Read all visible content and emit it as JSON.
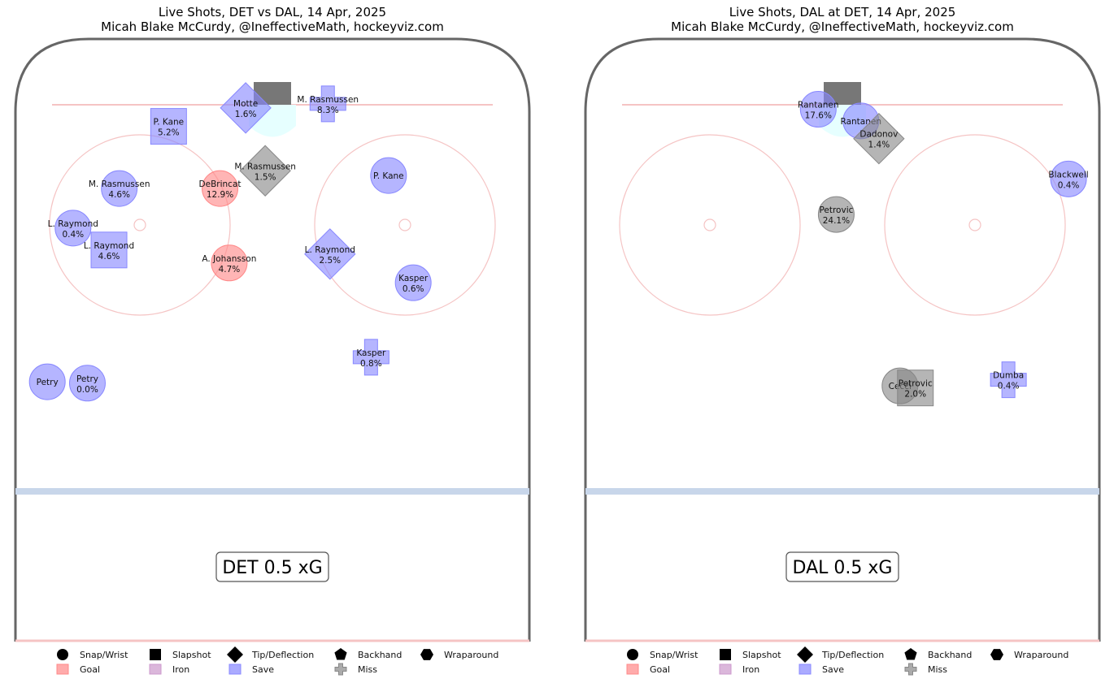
{
  "colors": {
    "save": "#8888ff",
    "goal": "#ff8888",
    "miss": "#888888",
    "iron": "#cc99cc",
    "rink_border": "#666666",
    "goal_line": "#f5c4c4",
    "blue_line": "#c8d6ea",
    "crease": "#e6ffff",
    "net": "#777777",
    "faceoff_circle": "#f5c4c4"
  },
  "legend": {
    "types": [
      {
        "key": "circle",
        "label": "Snap/Wrist"
      },
      {
        "key": "square",
        "label": "Slapshot"
      },
      {
        "key": "diamond",
        "label": "Tip/Deflection"
      },
      {
        "key": "pentagon",
        "label": "Backhand"
      },
      {
        "key": "hexagon",
        "label": "Wraparound"
      }
    ],
    "outcomes": [
      {
        "key": "goal",
        "label": "Goal"
      },
      {
        "key": "iron",
        "label": "Iron"
      },
      {
        "key": "save",
        "label": "Save"
      },
      {
        "key": "miss",
        "label": "Miss"
      }
    ]
  },
  "chart_data": [
    {
      "type": "scatter",
      "title": "Live Shots, DET vs DAL, 14 Apr, 2025",
      "subtitle": "Micah Blake McCurdy, @IneffectiveMath, hockeyviz.com",
      "xg_label": "DET 0.5 xG",
      "shots": [
        {
          "name": "Motte",
          "pct": "1.6%",
          "shape": "diamond",
          "outcome": "save",
          "x": 0.448,
          "y": 0.158
        },
        {
          "name": "M. Rasmussen",
          "pct": "8.3%",
          "shape": "cross",
          "outcome": "save",
          "x": 0.608,
          "y": 0.152
        },
        {
          "name": "P. Kane",
          "pct": "5.2%",
          "shape": "square",
          "outcome": "save",
          "x": 0.298,
          "y": 0.185
        },
        {
          "name": "M. Rasmussen",
          "pct": "1.5%",
          "shape": "diamond",
          "outcome": "miss",
          "x": 0.486,
          "y": 0.25
        },
        {
          "name": "DeBrincat",
          "pct": "12.9%",
          "shape": "circle",
          "outcome": "goal",
          "x": 0.398,
          "y": 0.276
        },
        {
          "name": "M. Rasmussen",
          "pct": "4.6%",
          "shape": "circle",
          "outcome": "save",
          "x": 0.202,
          "y": 0.276
        },
        {
          "name": "P. Kane",
          "pct": "",
          "shape": "circle",
          "outcome": "save",
          "x": 0.726,
          "y": 0.257
        },
        {
          "name": "L. Raymond",
          "pct": "0.4%",
          "shape": "circle",
          "outcome": "save",
          "x": 0.112,
          "y": 0.334
        },
        {
          "name": "L. Raymond",
          "pct": "4.6%",
          "shape": "square",
          "outcome": "save",
          "x": 0.182,
          "y": 0.366
        },
        {
          "name": "A. Johansson",
          "pct": "4.7%",
          "shape": "circle",
          "outcome": "goal",
          "x": 0.416,
          "y": 0.385
        },
        {
          "name": "L. Raymond",
          "pct": "2.5%",
          "shape": "diamond",
          "outcome": "save",
          "x": 0.612,
          "y": 0.372
        },
        {
          "name": "Kasper",
          "pct": "0.6%",
          "shape": "circle",
          "outcome": "save",
          "x": 0.774,
          "y": 0.414
        },
        {
          "name": "Kasper",
          "pct": "0.8%",
          "shape": "cross",
          "outcome": "save",
          "x": 0.692,
          "y": 0.523
        },
        {
          "name": "Petry",
          "pct": "",
          "shape": "circle",
          "outcome": "save",
          "x": 0.062,
          "y": 0.559
        },
        {
          "name": "Petry",
          "pct": "0.0%",
          "shape": "circle",
          "outcome": "save",
          "x": 0.14,
          "y": 0.561
        }
      ]
    },
    {
      "type": "scatter",
      "title": "Live Shots, DAL at DET, 14 Apr, 2025",
      "subtitle": "Micah Blake McCurdy, @IneffectiveMath, hockeyviz.com",
      "xg_label": "DAL 0.5 xG",
      "shots": [
        {
          "name": "Rantanen",
          "pct": "17.6%",
          "shape": "circle",
          "outcome": "save",
          "x": 0.453,
          "y": 0.16
        },
        {
          "name": "Rantanen",
          "pct": "",
          "shape": "circle",
          "outcome": "save",
          "x": 0.536,
          "y": 0.177
        },
        {
          "name": "Dadonov",
          "pct": "1.4%",
          "shape": "diamond",
          "outcome": "miss",
          "x": 0.571,
          "y": 0.203
        },
        {
          "name": "Blackwell",
          "pct": "0.4%",
          "shape": "circle",
          "outcome": "save",
          "x": 0.94,
          "y": 0.262
        },
        {
          "name": "Petrovic",
          "pct": "24.1%",
          "shape": "circle",
          "outcome": "miss",
          "x": 0.488,
          "y": 0.314
        },
        {
          "name": "Cecci",
          "pct": "",
          "shape": "circle",
          "outcome": "miss",
          "x": 0.612,
          "y": 0.565
        },
        {
          "name": "Petrovic",
          "pct": "2.0%",
          "shape": "square",
          "outcome": "miss",
          "x": 0.642,
          "y": 0.568
        },
        {
          "name": "Dumba",
          "pct": "0.4%",
          "shape": "cross",
          "outcome": "save",
          "x": 0.823,
          "y": 0.556
        }
      ]
    }
  ]
}
